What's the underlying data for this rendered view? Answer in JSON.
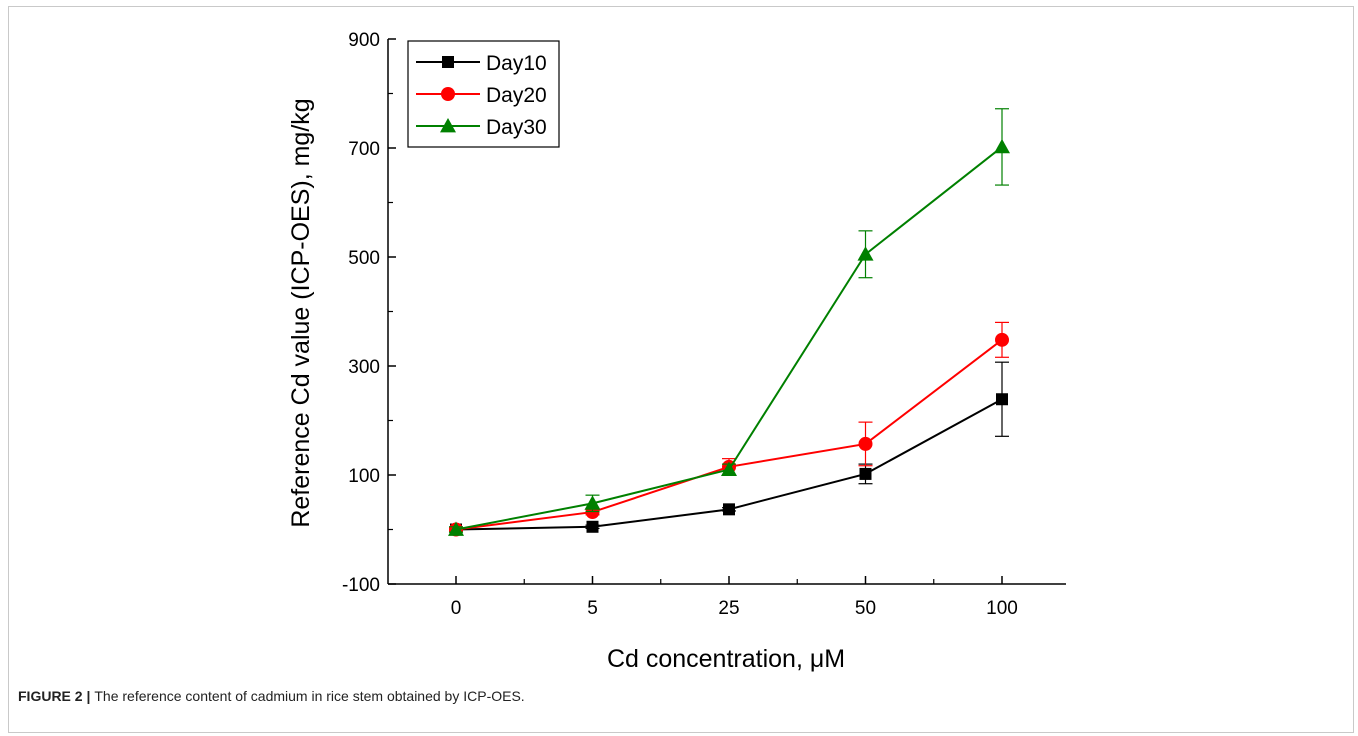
{
  "chart_data": {
    "type": "line",
    "categories": [
      "0",
      "5",
      "25",
      "50",
      "100"
    ],
    "xlabel": "Cd concentration, μM",
    "ylabel": "Reference Cd value (ICP-OES), mg/kg",
    "ylim": [
      -100,
      900
    ],
    "yticks": [
      "-100",
      "100",
      "300",
      "500",
      "700",
      "900"
    ],
    "grid": false,
    "legend_position": "top-left",
    "series": [
      {
        "name": "Day10",
        "color": "#000000",
        "marker": "square",
        "values": [
          0,
          5,
          37,
          102,
          239
        ],
        "errors": [
          3,
          3,
          3,
          18,
          68
        ]
      },
      {
        "name": "Day20",
        "color": "#ff0000",
        "marker": "circle",
        "values": [
          0,
          32,
          115,
          157,
          348
        ],
        "errors": [
          3,
          5,
          15,
          40,
          32
        ]
      },
      {
        "name": "Day30",
        "color": "#008000",
        "marker": "triangle",
        "values": [
          0,
          48,
          110,
          505,
          702
        ],
        "errors": [
          5,
          15,
          10,
          43,
          70
        ]
      }
    ]
  },
  "caption": {
    "label": "FIGURE 2 |",
    "text": "The reference content of cadmium in rice stem obtained by ICP-OES."
  }
}
